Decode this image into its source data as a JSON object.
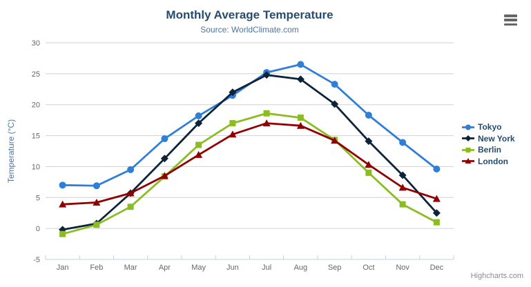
{
  "header": {
    "title": "Monthly Average Temperature",
    "subtitle": "Source: WorldClimate.com"
  },
  "icons": {
    "export_menu": "hamburger-icon"
  },
  "credits_label": "Highcharts.com",
  "colors": {
    "title_text": "#274b6d",
    "subtitle_text": "#4d759e",
    "axis_label_text": "#666666",
    "axis_line": "#c0d0e0",
    "gridline": "#d0d0d0",
    "legend_text": "#274b6d",
    "credits_text": "#8c8c8c"
  },
  "chart_data": {
    "type": "line",
    "title": "Monthly Average Temperature",
    "subtitle": "Source: WorldClimate.com",
    "categories": [
      "Jan",
      "Feb",
      "Mar",
      "Apr",
      "May",
      "Jun",
      "Jul",
      "Aug",
      "Sep",
      "Oct",
      "Nov",
      "Dec"
    ],
    "series": [
      {
        "name": "Tokyo",
        "color": "#2f7ed8",
        "marker": "circle",
        "values": [
          7.0,
          6.9,
          9.5,
          14.5,
          18.2,
          21.5,
          25.2,
          26.5,
          23.3,
          18.3,
          13.9,
          9.6
        ]
      },
      {
        "name": "New York",
        "color": "#0d233a",
        "marker": "diamond",
        "values": [
          -0.2,
          0.8,
          5.7,
          11.3,
          17.0,
          22.0,
          24.8,
          24.1,
          20.1,
          14.1,
          8.6,
          2.5
        ]
      },
      {
        "name": "Berlin",
        "color": "#8bbc21",
        "marker": "square",
        "values": [
          -0.9,
          0.6,
          3.5,
          8.4,
          13.5,
          17.0,
          18.6,
          17.9,
          14.3,
          9.0,
          3.9,
          1.0
        ]
      },
      {
        "name": "London",
        "color": "#910000",
        "marker": "triangle",
        "values": [
          3.9,
          4.2,
          5.7,
          8.5,
          11.9,
          15.2,
          17.0,
          16.6,
          14.2,
          10.3,
          6.6,
          4.8
        ]
      }
    ],
    "xlabel": "",
    "ylabel": "Temperature (°C)",
    "ylim": [
      -5,
      30
    ],
    "ytick_interval": 5,
    "grid": true,
    "legend_position": "right"
  }
}
